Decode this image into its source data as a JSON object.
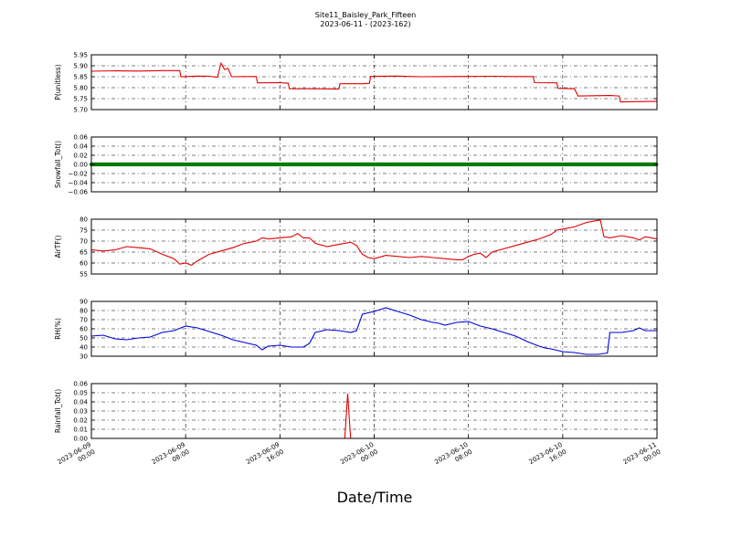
{
  "chart_data": {
    "title_line1": "Site11_Baisley_Park_Fifteen",
    "title_line2": "2023-06-11 - (2023-162)",
    "xlabel": "Date/Time",
    "x_ticks": [
      {
        "t": 0,
        "line1": "2023-06-09",
        "line2": "00:00"
      },
      {
        "t": 8,
        "line1": "2023-06-09",
        "line2": "08:00"
      },
      {
        "t": 16,
        "line1": "2023-06-09",
        "line2": "16:00"
      },
      {
        "t": 24,
        "line1": "2023-06-10",
        "line2": "00:00"
      },
      {
        "t": 32,
        "line1": "2023-06-10",
        "line2": "08:00"
      },
      {
        "t": 40,
        "line1": "2023-06-10",
        "line2": "16:00"
      },
      {
        "t": 48,
        "line1": "2023-06-11",
        "line2": "00:00"
      }
    ],
    "x_range_hours": [
      0,
      48
    ],
    "grid": true,
    "panels": [
      {
        "type": "line",
        "ylabel": "P(unitless)",
        "ylim": [
          5.7,
          5.95
        ],
        "yticks": [
          "5.70",
          "5.75",
          "5.80",
          "5.85",
          "5.90",
          "5.95"
        ],
        "color": "#e00000",
        "points": [
          [
            0,
            5.875
          ],
          [
            2,
            5.877
          ],
          [
            4,
            5.876
          ],
          [
            6,
            5.878
          ],
          [
            7.5,
            5.878
          ],
          [
            7.6,
            5.85
          ],
          [
            9,
            5.853
          ],
          [
            10,
            5.852
          ],
          [
            10.7,
            5.847
          ],
          [
            11,
            5.912
          ],
          [
            11.3,
            5.883
          ],
          [
            11.6,
            5.888
          ],
          [
            11.9,
            5.85
          ],
          [
            13,
            5.851
          ],
          [
            14,
            5.851
          ],
          [
            14.1,
            5.822
          ],
          [
            16,
            5.823
          ],
          [
            16.7,
            5.82
          ],
          [
            16.8,
            5.795
          ],
          [
            19,
            5.795
          ],
          [
            21,
            5.794
          ],
          [
            21.1,
            5.818
          ],
          [
            23,
            5.818
          ],
          [
            23.6,
            5.82
          ],
          [
            23.7,
            5.852
          ],
          [
            26,
            5.853
          ],
          [
            28,
            5.85
          ],
          [
            30,
            5.851
          ],
          [
            34,
            5.852
          ],
          [
            36,
            5.851
          ],
          [
            37.5,
            5.851
          ],
          [
            37.6,
            5.823
          ],
          [
            39.5,
            5.822
          ],
          [
            39.6,
            5.797
          ],
          [
            41,
            5.795
          ],
          [
            41.3,
            5.762
          ],
          [
            44,
            5.764
          ],
          [
            44.8,
            5.762
          ],
          [
            44.9,
            5.735
          ],
          [
            48,
            5.738
          ]
        ]
      },
      {
        "type": "line",
        "ylabel": "Snowfall_Tot()",
        "ylim": [
          -0.06,
          0.06
        ],
        "yticks": [
          "−0.06",
          "−0.04",
          "−0.02",
          "0.00",
          "0.02",
          "0.04",
          "0.06"
        ],
        "color": "#007a00",
        "markers": true,
        "points": [
          [
            0,
            0
          ],
          [
            48,
            0
          ]
        ]
      },
      {
        "type": "line",
        "ylabel": "AirTF()",
        "ylim": [
          55,
          80
        ],
        "yticks": [
          "55",
          "60",
          "65",
          "70",
          "75",
          "80"
        ],
        "color": "#e00000",
        "points": [
          [
            0,
            66
          ],
          [
            1,
            65.5
          ],
          [
            2,
            66
          ],
          [
            3,
            67.5
          ],
          [
            4,
            67
          ],
          [
            5,
            66.5
          ],
          [
            6,
            64
          ],
          [
            7,
            62
          ],
          [
            7.5,
            59.5
          ],
          [
            8,
            60
          ],
          [
            8.5,
            59
          ],
          [
            9,
            61
          ],
          [
            10,
            64
          ],
          [
            11,
            65.5
          ],
          [
            12,
            67
          ],
          [
            13,
            69
          ],
          [
            14,
            70
          ],
          [
            14.5,
            71.5
          ],
          [
            15,
            71
          ],
          [
            16,
            71.5
          ],
          [
            17,
            72
          ],
          [
            17.5,
            73.5
          ],
          [
            18,
            71.5
          ],
          [
            18.5,
            71.5
          ],
          [
            19,
            69
          ],
          [
            20,
            67.5
          ],
          [
            21,
            68.5
          ],
          [
            22,
            69.5
          ],
          [
            22.5,
            68
          ],
          [
            23,
            64
          ],
          [
            23.5,
            62.5
          ],
          [
            24,
            62
          ],
          [
            25,
            63.5
          ],
          [
            26,
            63
          ],
          [
            27,
            62.5
          ],
          [
            28,
            63
          ],
          [
            29,
            62.5
          ],
          [
            30,
            62
          ],
          [
            31,
            61.5
          ],
          [
            31.5,
            61.5
          ],
          [
            32,
            63
          ],
          [
            32.5,
            64
          ],
          [
            33,
            64.5
          ],
          [
            33.5,
            62.5
          ],
          [
            34,
            65
          ],
          [
            35,
            66.5
          ],
          [
            36,
            68
          ],
          [
            37,
            69.5
          ],
          [
            38,
            71
          ],
          [
            39,
            73
          ],
          [
            39.5,
            75
          ],
          [
            40,
            75.5
          ],
          [
            41,
            76.5
          ],
          [
            41.5,
            77.5
          ],
          [
            42,
            78.5
          ],
          [
            42.5,
            79
          ],
          [
            43,
            79.5
          ],
          [
            43.2,
            79.5
          ],
          [
            43.5,
            72
          ],
          [
            44,
            71.5
          ],
          [
            45,
            72.5
          ],
          [
            46,
            71.5
          ],
          [
            46.5,
            70.5
          ],
          [
            47,
            72
          ],
          [
            48,
            71
          ]
        ]
      },
      {
        "type": "line",
        "ylabel": "RH(%)",
        "ylim": [
          30,
          90
        ],
        "yticks": [
          "30",
          "40",
          "50",
          "60",
          "70",
          "80",
          "90"
        ],
        "color": "#0000dd",
        "points": [
          [
            0,
            52
          ],
          [
            1,
            53
          ],
          [
            2,
            49
          ],
          [
            3,
            48
          ],
          [
            4,
            50
          ],
          [
            5,
            51
          ],
          [
            6,
            56
          ],
          [
            7,
            58
          ],
          [
            8,
            63
          ],
          [
            9,
            61
          ],
          [
            10,
            57
          ],
          [
            11,
            53
          ],
          [
            12,
            48
          ],
          [
            13,
            45
          ],
          [
            14,
            42
          ],
          [
            14.5,
            37
          ],
          [
            15,
            41
          ],
          [
            16,
            42
          ],
          [
            17,
            40
          ],
          [
            18,
            40
          ],
          [
            18.5,
            44
          ],
          [
            19,
            56
          ],
          [
            20,
            59
          ],
          [
            21,
            58
          ],
          [
            21.5,
            57
          ],
          [
            22,
            56
          ],
          [
            22.5,
            58
          ],
          [
            23,
            76
          ],
          [
            24,
            79
          ],
          [
            24.5,
            81
          ],
          [
            25,
            83
          ],
          [
            26,
            79
          ],
          [
            27,
            75
          ],
          [
            28,
            70
          ],
          [
            29,
            67
          ],
          [
            29.5,
            66
          ],
          [
            30,
            64
          ],
          [
            31,
            67
          ],
          [
            32,
            68
          ],
          [
            33,
            63
          ],
          [
            34,
            60
          ],
          [
            35,
            56
          ],
          [
            36,
            52
          ],
          [
            37,
            46
          ],
          [
            38,
            41
          ],
          [
            38.5,
            39
          ],
          [
            39,
            38
          ],
          [
            40,
            35
          ],
          [
            41,
            34
          ],
          [
            41.5,
            33
          ],
          [
            42,
            32
          ],
          [
            43,
            32
          ],
          [
            43.5,
            33
          ],
          [
            43.8,
            33.5
          ],
          [
            44,
            56
          ],
          [
            45,
            56
          ],
          [
            46,
            58
          ],
          [
            46.5,
            61
          ],
          [
            47,
            58
          ],
          [
            48,
            58
          ]
        ]
      },
      {
        "type": "line",
        "ylabel": "Rainfall_Tot()",
        "ylim": [
          0.0,
          0.06
        ],
        "yticks": [
          "0.00",
          "0.01",
          "0.02",
          "0.03",
          "0.04",
          "0.05",
          "0.06"
        ],
        "color": "#e00000",
        "points": [
          [
            0,
            0
          ],
          [
            21.5,
            0
          ],
          [
            21.75,
            0.049
          ],
          [
            22,
            0
          ],
          [
            48,
            0
          ]
        ]
      }
    ]
  }
}
